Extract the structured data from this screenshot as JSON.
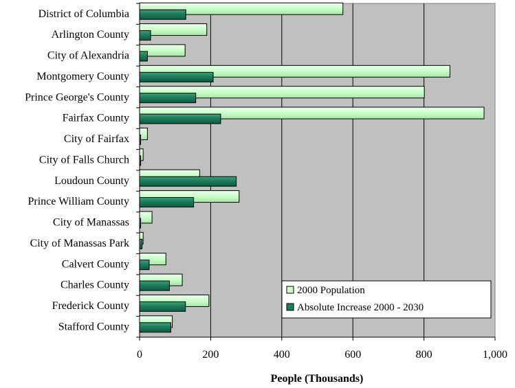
{
  "chart_data": {
    "type": "bar",
    "orientation": "horizontal",
    "title": "",
    "xlabel": "People (Thousands)",
    "ylabel": "",
    "xlim": [
      0,
      1000
    ],
    "x_ticks": [
      0,
      200,
      400,
      600,
      800,
      1000
    ],
    "x_tick_labels": [
      "0",
      "200",
      "400",
      "600",
      "800",
      "1,000"
    ],
    "grid": "vertical",
    "legend_position": "lower-right",
    "categories": [
      "District of Columbia",
      "Arlington County",
      "City of Alexandria",
      "Montgomery County",
      "Prince George's County",
      "Fairfax County",
      "City of Fairfax",
      "City of Falls Church",
      "Loudoun County",
      "Prince William County",
      "City of Manassas",
      "City of Manassas Park",
      "Calvert County",
      "Charles County",
      "Frederick County",
      "Stafford County"
    ],
    "series": [
      {
        "name": "2000 Population",
        "color": "#ccffcc",
        "values": [
          572,
          189,
          128,
          873,
          801,
          969,
          22,
          10,
          169,
          280,
          35,
          10,
          74,
          120,
          195,
          92
        ]
      },
      {
        "name": "Absolute Increase 2000 - 2030",
        "color": "#1e7c5c",
        "values": [
          130,
          31,
          22,
          207,
          158,
          228,
          3,
          3,
          272,
          152,
          3,
          7,
          27,
          84,
          129,
          88
        ]
      }
    ],
    "plot_background": "#c0c0c0"
  }
}
